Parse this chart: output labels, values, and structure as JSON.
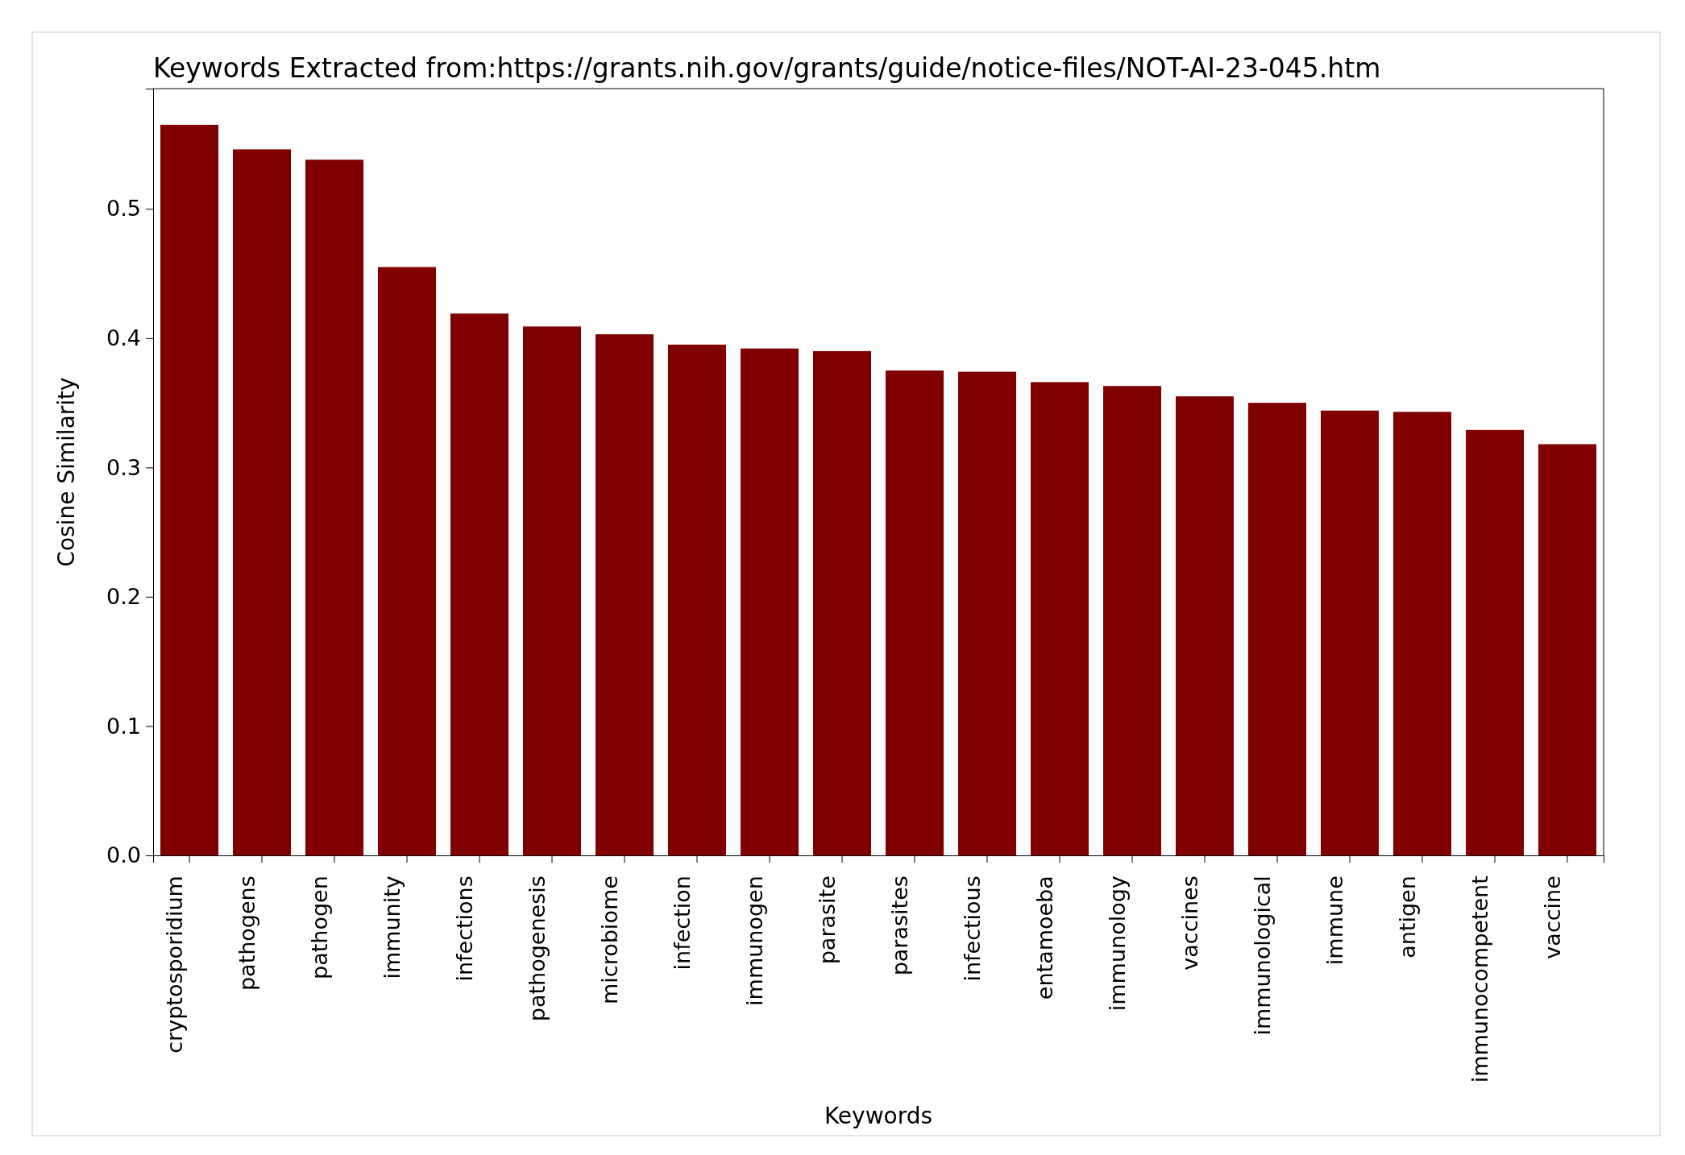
{
  "chart_data": {
    "type": "bar",
    "title": "Keywords Extracted from:https://grants.nih.gov/grants/guide/notice-files/NOT-AI-23-045.htm",
    "xlabel": "Keywords",
    "ylabel": "Cosine Similarity",
    "categories": [
      "cryptosporidium",
      "pathogens",
      "pathogen",
      "immunity",
      "infections",
      "pathogenesis",
      "microbiome",
      "infection",
      "immunogen",
      "parasite",
      "parasites",
      "infectious",
      "entamoeba",
      "immunology",
      "vaccines",
      "immunological",
      "immune",
      "antigen",
      "immunocompetent",
      "vaccine"
    ],
    "values": [
      0.565,
      0.546,
      0.538,
      0.455,
      0.419,
      0.409,
      0.403,
      0.395,
      0.392,
      0.39,
      0.375,
      0.374,
      0.366,
      0.363,
      0.355,
      0.35,
      0.344,
      0.343,
      0.329,
      0.318
    ],
    "color": "#800000",
    "ylim": [
      0,
      0.593
    ],
    "yticks": [
      {
        "value": 0,
        "label": "0.0"
      },
      {
        "value": 0.1,
        "label": "0.1"
      },
      {
        "value": 0.2,
        "label": "0.2"
      },
      {
        "value": 0.3,
        "label": "0.3"
      },
      {
        "value": 0.4,
        "label": "0.4"
      },
      {
        "value": 0.5,
        "label": "0.5"
      }
    ]
  }
}
